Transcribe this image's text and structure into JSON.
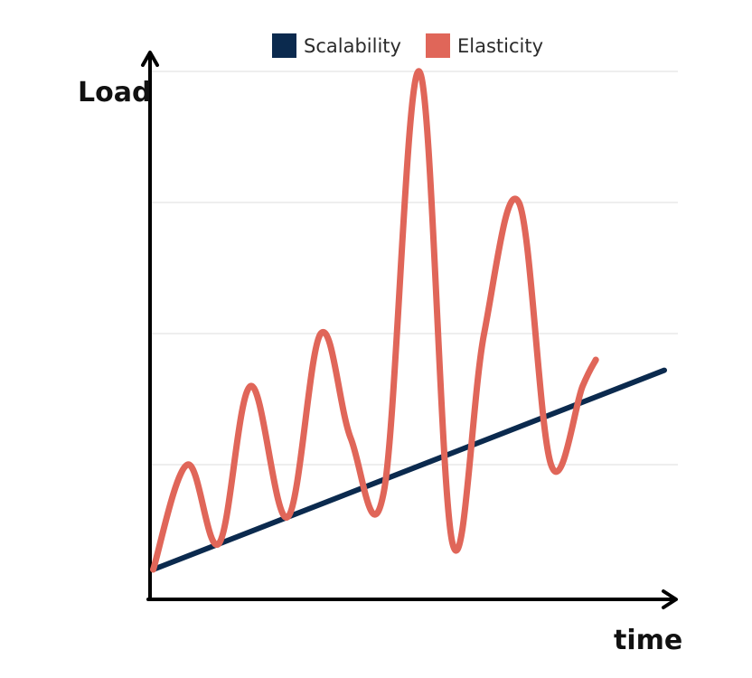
{
  "chart_data": {
    "type": "line",
    "xlabel": "time",
    "ylabel": "Load",
    "xlim": [
      0,
      100
    ],
    "ylim": [
      0,
      100
    ],
    "grid": true,
    "gridlines_y": [
      25,
      50,
      75,
      100
    ],
    "legend_position": "top-center",
    "series": [
      {
        "name": "Scalability",
        "color": "#0b2a4e",
        "x": [
          3,
          100
        ],
        "y": [
          5,
          43
        ]
      },
      {
        "name": "Elasticity",
        "color": "#e06659",
        "x": [
          3,
          9.5,
          15.5,
          21.5,
          28.5,
          34.8,
          40.5,
          46.8,
          53.5,
          59.8,
          65.8,
          72.4,
          78.5,
          84.5,
          87
        ],
        "y": [
          5,
          25,
          10,
          40,
          15,
          50,
          30,
          20,
          100,
          10,
          50,
          75,
          25,
          40,
          45
        ]
      }
    ]
  }
}
